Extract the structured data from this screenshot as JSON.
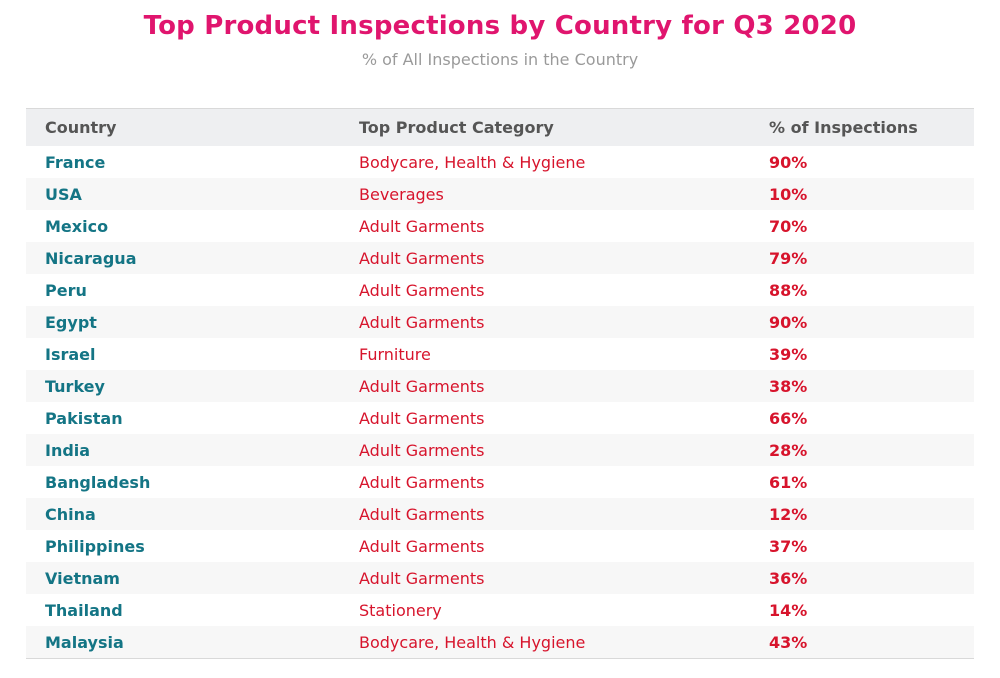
{
  "title": "Top Product Inspections by Country for Q3 2020",
  "subtitle": "% of All Inspections in the Country",
  "columns": {
    "country": "Country",
    "category": "Top Product Category",
    "pct": "% of Inspections"
  },
  "chart_data": {
    "type": "table",
    "title": "Top Product Inspections by Country for Q3 2020",
    "subtitle": "% of All Inspections in the Country",
    "headers": [
      "Country",
      "Top Product Category",
      "% of Inspections"
    ],
    "rows": [
      {
        "country": "France",
        "category": "Bodycare, Health & Hygiene",
        "pct": "90%"
      },
      {
        "country": "USA",
        "category": "Beverages",
        "pct": "10%"
      },
      {
        "country": "Mexico",
        "category": "Adult Garments",
        "pct": "70%"
      },
      {
        "country": "Nicaragua",
        "category": "Adult Garments",
        "pct": "79%"
      },
      {
        "country": "Peru",
        "category": "Adult Garments",
        "pct": "88%"
      },
      {
        "country": "Egypt",
        "category": "Adult Garments",
        "pct": "90%"
      },
      {
        "country": "Israel",
        "category": "Furniture",
        "pct": "39%"
      },
      {
        "country": "Turkey",
        "category": "Adult Garments",
        "pct": "38%"
      },
      {
        "country": "Pakistan",
        "category": "Adult Garments",
        "pct": "66%"
      },
      {
        "country": "India",
        "category": "Adult Garments",
        "pct": "28%"
      },
      {
        "country": "Bangladesh",
        "category": "Adult Garments",
        "pct": "61%"
      },
      {
        "country": "China",
        "category": "Adult Garments",
        "pct": "12%"
      },
      {
        "country": "Philippines",
        "category": "Adult Garments",
        "pct": "37%"
      },
      {
        "country": "Vietnam",
        "category": "Adult Garments",
        "pct": "36%"
      },
      {
        "country": "Thailand",
        "category": "Stationery",
        "pct": "14%"
      },
      {
        "country": "Malaysia",
        "category": "Bodycare, Health & Hygiene",
        "pct": "43%"
      }
    ]
  },
  "colors": {
    "title": "#e0156e",
    "country": "#147585",
    "value": "#d7142c"
  }
}
